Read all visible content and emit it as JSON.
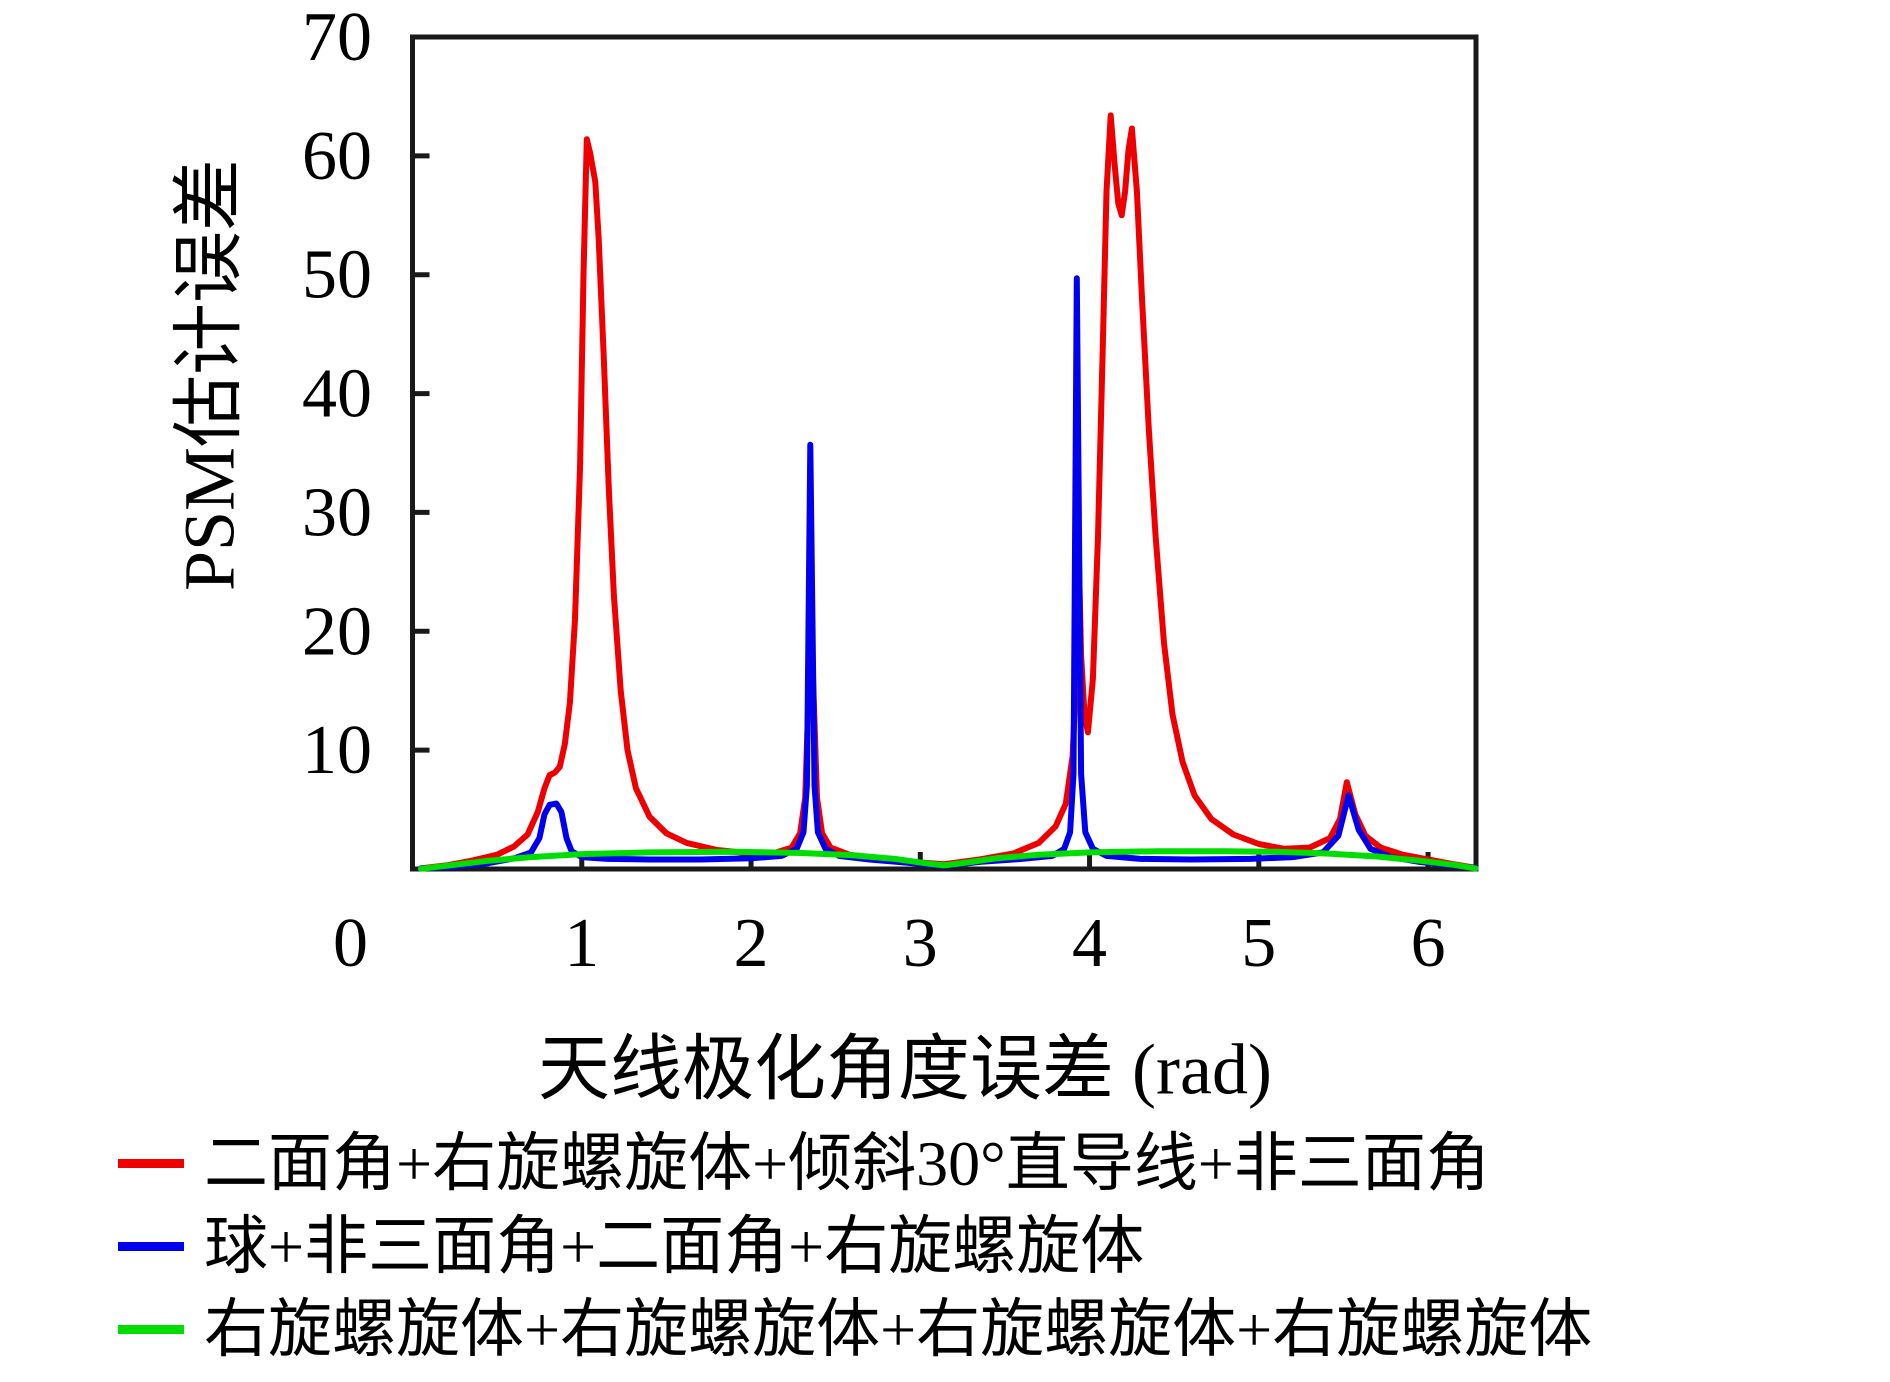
{
  "figure": {
    "background": "#ffffff",
    "axis_color": "#1a1a1a",
    "text_color": "#000000"
  },
  "chart_data": {
    "type": "line",
    "title": "",
    "xlabel": "天线极化角度误差 (rad)",
    "ylabel": "PSM估计误差",
    "xlim": [
      0,
      6.2832
    ],
    "ylim": [
      0,
      70
    ],
    "x_ticks": [
      0,
      1,
      2,
      3,
      4,
      5,
      6
    ],
    "y_ticks": [
      10,
      20,
      30,
      40,
      50,
      60,
      70
    ],
    "grid": false,
    "legend_position": "below-left",
    "series": [
      {
        "name": "二面角+右旋螺旋体+倾斜30°直导线+非三面角",
        "color": "#ee0000",
        "points": [
          [
            0.05,
            0.05
          ],
          [
            0.2,
            0.3
          ],
          [
            0.35,
            0.7
          ],
          [
            0.5,
            1.2
          ],
          [
            0.6,
            1.9
          ],
          [
            0.68,
            2.9
          ],
          [
            0.74,
            4.8
          ],
          [
            0.78,
            6.8
          ],
          [
            0.81,
            7.9
          ],
          [
            0.84,
            8.1
          ],
          [
            0.87,
            8.6
          ],
          [
            0.9,
            10.5
          ],
          [
            0.93,
            14
          ],
          [
            0.96,
            21
          ],
          [
            0.99,
            34
          ],
          [
            1.01,
            50
          ],
          [
            1.03,
            61.4
          ],
          [
            1.05,
            60.2
          ],
          [
            1.08,
            57.8
          ],
          [
            1.1,
            53
          ],
          [
            1.13,
            43
          ],
          [
            1.16,
            32
          ],
          [
            1.19,
            23
          ],
          [
            1.23,
            15
          ],
          [
            1.27,
            10
          ],
          [
            1.32,
            6.8
          ],
          [
            1.4,
            4.4
          ],
          [
            1.5,
            3.0
          ],
          [
            1.62,
            2.2
          ],
          [
            1.8,
            1.6
          ],
          [
            2.0,
            1.3
          ],
          [
            2.15,
            1.4
          ],
          [
            2.24,
            1.8
          ],
          [
            2.29,
            3.0
          ],
          [
            2.32,
            6.0
          ],
          [
            2.355,
            21
          ],
          [
            2.39,
            6.0
          ],
          [
            2.42,
            3.0
          ],
          [
            2.47,
            1.8
          ],
          [
            2.58,
            1.2
          ],
          [
            2.75,
            0.9
          ],
          [
            2.95,
            0.6
          ],
          [
            3.14,
            0.4
          ],
          [
            3.35,
            0.8
          ],
          [
            3.55,
            1.3
          ],
          [
            3.7,
            2.2
          ],
          [
            3.8,
            3.6
          ],
          [
            3.86,
            5.5
          ],
          [
            3.9,
            9.5
          ],
          [
            3.92,
            16
          ],
          [
            3.935,
            27.5
          ],
          [
            3.95,
            18
          ],
          [
            3.97,
            13
          ],
          [
            3.99,
            11.5
          ],
          [
            4.02,
            16
          ],
          [
            4.05,
            28
          ],
          [
            4.08,
            45
          ],
          [
            4.1,
            57
          ],
          [
            4.125,
            63.4
          ],
          [
            4.15,
            59
          ],
          [
            4.17,
            56
          ],
          [
            4.19,
            55
          ],
          [
            4.21,
            57
          ],
          [
            4.23,
            60.5
          ],
          [
            4.25,
            62.3
          ],
          [
            4.28,
            57
          ],
          [
            4.31,
            48
          ],
          [
            4.35,
            37
          ],
          [
            4.39,
            28
          ],
          [
            4.44,
            19
          ],
          [
            4.49,
            13
          ],
          [
            4.55,
            9
          ],
          [
            4.62,
            6.2
          ],
          [
            4.72,
            4.2
          ],
          [
            4.85,
            2.9
          ],
          [
            5.0,
            2.1
          ],
          [
            5.15,
            1.7
          ],
          [
            5.3,
            1.8
          ],
          [
            5.42,
            2.6
          ],
          [
            5.48,
            4.2
          ],
          [
            5.52,
            7.3
          ],
          [
            5.57,
            4.6
          ],
          [
            5.63,
            2.8
          ],
          [
            5.72,
            1.8
          ],
          [
            5.85,
            1.2
          ],
          [
            6.0,
            0.8
          ],
          [
            6.15,
            0.4
          ],
          [
            6.28,
            0.1
          ]
        ]
      },
      {
        "name": "球+非三面角+二面角+右旋螺旋体",
        "color": "#0000ee",
        "points": [
          [
            0.05,
            0.05
          ],
          [
            0.25,
            0.2
          ],
          [
            0.45,
            0.5
          ],
          [
            0.6,
            0.9
          ],
          [
            0.7,
            1.4
          ],
          [
            0.75,
            2.6
          ],
          [
            0.78,
            4.6
          ],
          [
            0.81,
            5.4
          ],
          [
            0.85,
            5.5
          ],
          [
            0.88,
            4.8
          ],
          [
            0.91,
            2.6
          ],
          [
            0.94,
            1.5
          ],
          [
            1.0,
            1.0
          ],
          [
            1.15,
            0.85
          ],
          [
            1.4,
            0.8
          ],
          [
            1.7,
            0.8
          ],
          [
            2.0,
            0.9
          ],
          [
            2.18,
            1.1
          ],
          [
            2.27,
            1.7
          ],
          [
            2.31,
            3.1
          ],
          [
            2.33,
            7.0
          ],
          [
            2.35,
            35.7
          ],
          [
            2.375,
            7.0
          ],
          [
            2.395,
            3.1
          ],
          [
            2.44,
            1.7
          ],
          [
            2.52,
            1.1
          ],
          [
            2.7,
            0.8
          ],
          [
            2.95,
            0.5
          ],
          [
            3.14,
            0.25
          ],
          [
            3.35,
            0.6
          ],
          [
            3.6,
            0.85
          ],
          [
            3.78,
            1.1
          ],
          [
            3.85,
            1.7
          ],
          [
            3.885,
            3.1
          ],
          [
            3.905,
            8.0
          ],
          [
            3.925,
            49.7
          ],
          [
            3.95,
            8.0
          ],
          [
            3.975,
            3.1
          ],
          [
            4.02,
            1.7
          ],
          [
            4.1,
            1.1
          ],
          [
            4.3,
            0.85
          ],
          [
            4.6,
            0.8
          ],
          [
            4.95,
            0.85
          ],
          [
            5.2,
            1.0
          ],
          [
            5.38,
            1.4
          ],
          [
            5.47,
            2.8
          ],
          [
            5.53,
            6.2
          ],
          [
            5.59,
            3.3
          ],
          [
            5.66,
            1.7
          ],
          [
            5.78,
            1.0
          ],
          [
            5.95,
            0.6
          ],
          [
            6.13,
            0.3
          ],
          [
            6.28,
            0.1
          ]
        ]
      },
      {
        "name": "右旋螺旋体+右旋螺旋体+右旋螺旋体+右旋螺旋体",
        "color": "#00dd00",
        "points": [
          [
            0.05,
            0.02
          ],
          [
            0.25,
            0.35
          ],
          [
            0.45,
            0.7
          ],
          [
            0.7,
            1.0
          ],
          [
            1.0,
            1.25
          ],
          [
            1.4,
            1.4
          ],
          [
            1.9,
            1.45
          ],
          [
            2.3,
            1.35
          ],
          [
            2.6,
            1.15
          ],
          [
            2.85,
            0.85
          ],
          [
            3.05,
            0.45
          ],
          [
            3.14,
            0.3
          ],
          [
            3.25,
            0.5
          ],
          [
            3.45,
            0.9
          ],
          [
            3.7,
            1.2
          ],
          [
            4.0,
            1.4
          ],
          [
            4.4,
            1.5
          ],
          [
            4.8,
            1.5
          ],
          [
            5.1,
            1.45
          ],
          [
            5.4,
            1.3
          ],
          [
            5.7,
            1.05
          ],
          [
            5.95,
            0.7
          ],
          [
            6.15,
            0.35
          ],
          [
            6.28,
            0.05
          ]
        ]
      }
    ]
  }
}
